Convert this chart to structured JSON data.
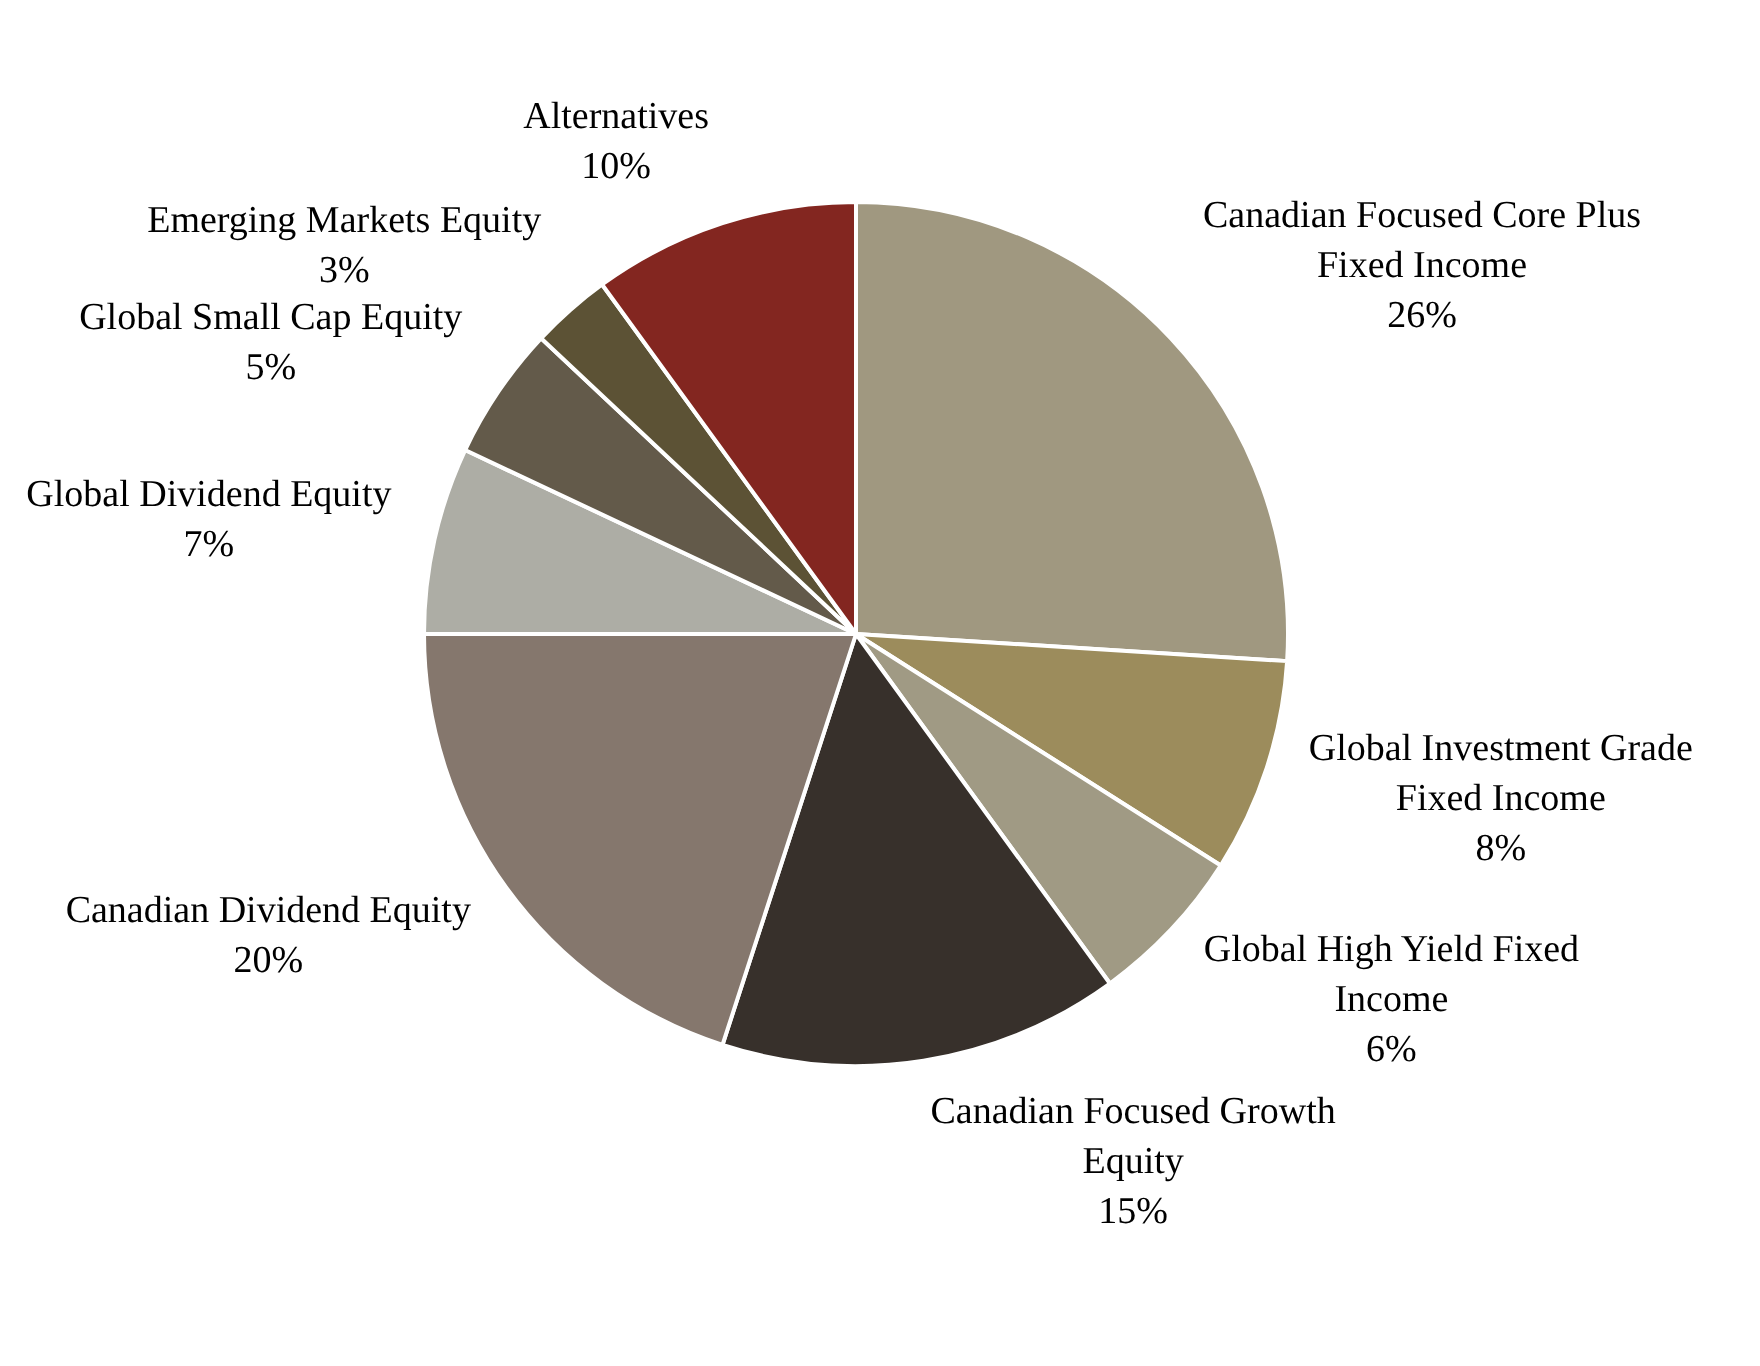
{
  "chart_data": {
    "type": "pie",
    "categories": [
      "Canadian Focused Core Plus Fixed Income",
      "Global Investment Grade Fixed Income",
      "Global High Yield Fixed Income",
      "Canadian Focused Growth Equity",
      "Canadian Dividend Equity",
      "Global Dividend Equity",
      "Global Small Cap Equity",
      "Emerging Markets Equity",
      "Alternatives"
    ],
    "values": [
      26,
      8,
      6,
      15,
      20,
      7,
      5,
      3,
      10
    ],
    "value_labels": [
      "26%",
      "8%",
      "6%",
      "15%",
      "20%",
      "7%",
      "5%",
      "3%",
      "10%"
    ],
    "colors": [
      "#a09880",
      "#9c8c5c",
      "#a09a84",
      "#37302b",
      "#85776d",
      "#adada5",
      "#635a4a",
      "#5c5235",
      "#832620"
    ]
  }
}
